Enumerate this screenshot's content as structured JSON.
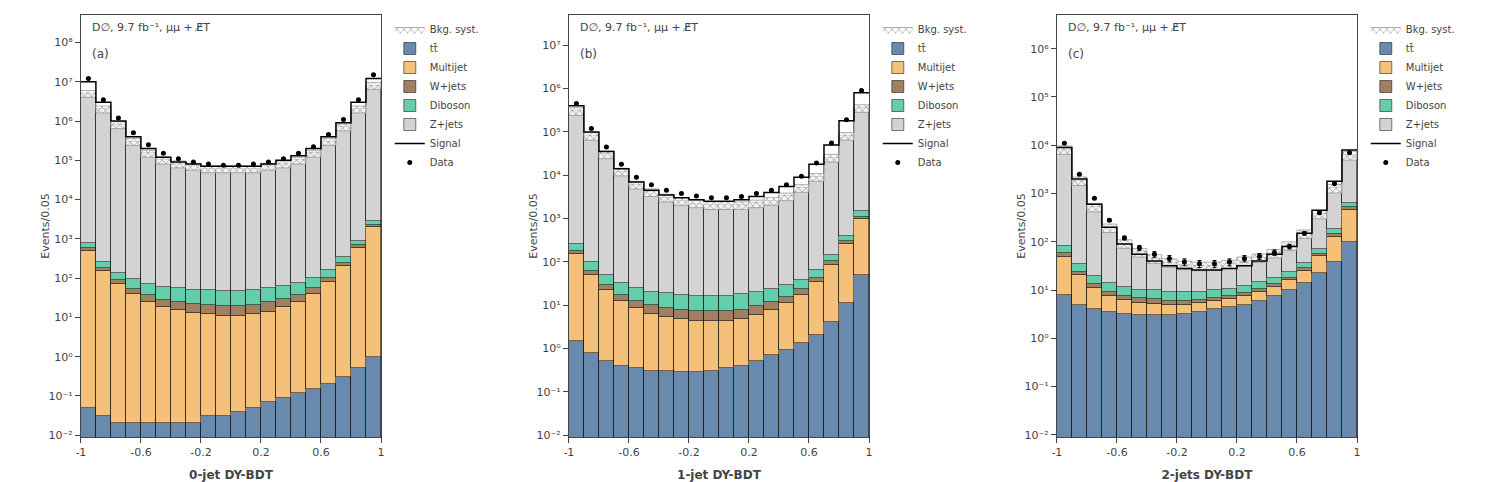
{
  "chart_data": [
    {
      "type": "bar",
      "stacked": true,
      "log": "y",
      "grid": false,
      "legend": "right",
      "x_label": "0-jet DY-BDT",
      "y_label": "Events/0.05",
      "annotations": [
        "D∅, 9.7 fb⁻¹, μμ + E̸T",
        "(a)"
      ],
      "bins": [
        -1.0,
        -0.9,
        -0.8,
        -0.7,
        -0.6,
        -0.5,
        -0.4,
        -0.3,
        -0.2,
        -0.1,
        0.0,
        0.1,
        0.2,
        0.3,
        0.4,
        0.5,
        0.6,
        0.7,
        0.8,
        0.9,
        1.0
      ],
      "xlim": [
        -1,
        1
      ],
      "xticks": [
        -1,
        -0.6,
        -0.2,
        0.2,
        0.6,
        1
      ],
      "ylim": [
        0.009,
        500000000.0
      ],
      "yticks": [
        {
          "value": 0.01,
          "label": "10⁻²"
        },
        {
          "value": 0.1,
          "label": "10⁻¹"
        },
        {
          "value": 1,
          "label": "10⁰"
        },
        {
          "value": 10,
          "label": "10¹"
        },
        {
          "value": 100,
          "label": "10²"
        },
        {
          "value": 1000,
          "label": "10³"
        },
        {
          "value": 10000,
          "label": "10⁴"
        },
        {
          "value": 100000,
          "label": "10⁵"
        },
        {
          "value": 1000000,
          "label": "10⁶"
        },
        {
          "value": 10000000,
          "label": "10⁷"
        },
        {
          "value": 100000000,
          "label": "10⁸"
        }
      ],
      "series": [
        {
          "name": "Data",
          "type": "scatter",
          "marker": "circle",
          "color": "#000000",
          "values": [
            12000000.0,
            3500000.0,
            1200000.0,
            500000.0,
            250000.0,
            150000.0,
            110000.0,
            90000.0,
            80000.0,
            75000.0,
            75000.0,
            80000.0,
            90000.0,
            110000.0,
            150000.0,
            220000.0,
            450000.0,
            1100000.0,
            3500000.0,
            15000000.0
          ],
          "errors": [
            3464.1016,
            1870.8287,
            1095.4451,
            707.1068,
            500,
            387.2983,
            331.6625,
            300,
            282.8427,
            273.8613,
            273.8613,
            282.8427,
            300,
            331.6625,
            387.2983,
            469.0416,
            670.8204,
            1048.8088,
            1870.8287,
            3872.9833
          ]
        },
        {
          "name": "Signal",
          "type": "step",
          "line_style": "solid",
          "color": "#000000",
          "values": [
            10000000.0,
            3000000.0,
            1000000.0,
            400000.0,
            200000.0,
            120000.0,
            90000.0,
            80000.0,
            70000.0,
            70000.0,
            70000.0,
            70000.0,
            80000.0,
            100000.0,
            130000.0,
            200000.0,
            400000.0,
            900000.0,
            3000000.0,
            12000000.0
          ]
        },
        {
          "name": "Z+jets",
          "type": "bar",
          "color": "#d3d3d3",
          "values": [
            5000000.0,
            2000000.0,
            800000.0,
            300000.0,
            150000.0,
            100000.0,
            80000.0,
            70000.0,
            60000.0,
            60000.0,
            60000.0,
            60000.0,
            70000.0,
            80000.0,
            100000.0,
            150000.0,
            300000.0,
            700000.0,
            2000000.0,
            8000000.0
          ]
        },
        {
          "name": "Diboson",
          "type": "bar",
          "color": "#66cdaa",
          "values": [
            200,
            80,
            50,
            40,
            35,
            30,
            30,
            28,
            28,
            28,
            28,
            30,
            32,
            35,
            38,
            45,
            60,
            100,
            200,
            600
          ]
        },
        {
          "name": "W+jets",
          "type": "bar",
          "color": "#a08060",
          "values": [
            80,
            30,
            18,
            14,
            12,
            10,
            10,
            9,
            9,
            8,
            8,
            9,
            10,
            11,
            13,
            16,
            22,
            40,
            90,
            300
          ]
        },
        {
          "name": "Multijet",
          "type": "bar",
          "color": "#f5c07a",
          "values": [
            500,
            150,
            70,
            40,
            25,
            18,
            15,
            13,
            12,
            11,
            11,
            12,
            14,
            18,
            25,
            40,
            80,
            200,
            600,
            2000
          ]
        },
        {
          "name": "tt̄",
          "type": "bar",
          "color": "#6a8aad",
          "values": [
            0.05,
            0.03,
            0.02,
            0.02,
            0.02,
            0.02,
            0.02,
            0.02,
            0.03,
            0.03,
            0.04,
            0.05,
            0.07,
            0.09,
            0.12,
            0.15,
            0.2,
            0.3,
            0.5,
            1.0
          ]
        },
        {
          "name": "Bkg. syst.",
          "type": "band",
          "color": "#808080",
          "low": [
            4000624.04,
            1600208.024,
            640110.416,
            240075.216,
            120057.616,
            80046.416,
            64044.016,
            56040.016,
            48039.224,
            48037.624,
            48037.632,
            48040.84,
            56044.856,
            64051.272,
            80060.896,
            120080.92,
            240129.76,
            560272.24,
            1600712.4,
            6402320.8
          ],
          "high": [
            6000936.06,
            2400312.036,
            960165.624,
            360112.824,
            180086.424,
            120069.624,
            96066.024,
            84060.024,
            72058.836,
            72056.436,
            72056.448,
            72061.26,
            84067.284,
            96076.908,
            120091.344,
            180121.38,
            360194.64,
            840408.36,
            2401068.6,
            9603481.2
          ]
        }
      ]
    },
    {
      "type": "bar",
      "stacked": true,
      "log": "y",
      "grid": false,
      "legend": "right",
      "x_label": "1-jet DY-BDT",
      "y_label": "Events/0.05",
      "annotations": [
        "D∅, 9.7 fb⁻¹, μμ + E̸T",
        "(b)"
      ],
      "bins": [
        -1.0,
        -0.9,
        -0.8,
        -0.7,
        -0.6,
        -0.5,
        -0.4,
        -0.3,
        -0.2,
        -0.1,
        0.0,
        0.1,
        0.2,
        0.3,
        0.4,
        0.5,
        0.6,
        0.7,
        0.8,
        0.9,
        1.0
      ],
      "xlim": [
        -1,
        1
      ],
      "xticks": [
        -1,
        -0.6,
        -0.2,
        0.2,
        0.6,
        1
      ],
      "ylim": [
        0.009,
        50000000.0
      ],
      "yticks": [
        {
          "value": 0.01,
          "label": "10⁻²"
        },
        {
          "value": 0.1,
          "label": "10⁻¹"
        },
        {
          "value": 1,
          "label": "10⁰"
        },
        {
          "value": 10,
          "label": "10¹"
        },
        {
          "value": 100,
          "label": "10²"
        },
        {
          "value": 1000,
          "label": "10³"
        },
        {
          "value": 10000,
          "label": "10⁴"
        },
        {
          "value": 100000,
          "label": "10⁵"
        },
        {
          "value": 1000000,
          "label": "10⁶"
        },
        {
          "value": 10000000,
          "label": "10⁷"
        }
      ],
      "series": [
        {
          "name": "Data",
          "type": "scatter",
          "marker": "circle",
          "color": "#000000",
          "values": [
            450000.0,
            120000.0,
            45000.0,
            18000.0,
            9000.0,
            6000.0,
            4500.0,
            3800.0,
            3300.0,
            3000.0,
            3000.0,
            3200.0,
            3800.0,
            4500.0,
            6000.0,
            9500.0,
            19000.0,
            55000.0,
            190000.0,
            900000.0
          ],
          "errors": [
            670.8204,
            346.4102,
            212.132,
            134.1641,
            94.8683,
            77.4597,
            67.082,
            61.6441,
            57.4456,
            54.7723,
            54.7723,
            56.5685,
            61.6441,
            67.082,
            77.4597,
            97.4679,
            137.8405,
            234.5208,
            435.8899,
            948.6833
          ]
        },
        {
          "name": "Signal",
          "type": "step",
          "line_style": "solid",
          "color": "#000000",
          "values": [
            400000.0,
            100000.0,
            35000.0,
            14000.0,
            7000.0,
            4500.0,
            3500.0,
            3000.0,
            2700.0,
            2500.0,
            2500.0,
            2700.0,
            3200.0,
            4000.0,
            5500.0,
            9000.0,
            18000.0,
            50000.0,
            180000.0,
            800000.0
          ]
        },
        {
          "name": "Z+jets",
          "type": "bar",
          "color": "#d3d3d3",
          "values": [
            300000.0,
            80000.0,
            30000.0,
            12000.0,
            6000.0,
            4000.0,
            3000.0,
            2500.0,
            2200.0,
            2000.0,
            2000.0,
            2000.0,
            2200.0,
            2500.0,
            3200.0,
            5000.0,
            9000.0,
            25000.0,
            80000.0,
            350000.0
          ]
        },
        {
          "name": "Diboson",
          "type": "bar",
          "color": "#66cdaa",
          "values": [
            80,
            35,
            20,
            15,
            12,
            10,
            10,
            9,
            9,
            9,
            9,
            10,
            11,
            12,
            13,
            15,
            22,
            40,
            90,
            350
          ]
        },
        {
          "name": "W+jets",
          "type": "bar",
          "color": "#a08060",
          "values": [
            30,
            12,
            7,
            5,
            4,
            3.5,
            3.5,
            3,
            3,
            3,
            3,
            3,
            3.5,
            4,
            4.5,
            6,
            9,
            18,
            45,
            160
          ]
        },
        {
          "name": "Multijet",
          "type": "bar",
          "color": "#f5c07a",
          "values": [
            150,
            50,
            22,
            12,
            8,
            6,
            5,
            4.5,
            4,
            4,
            4,
            4.5,
            5.5,
            7,
            10,
            16,
            32,
            80,
            250,
            900
          ]
        },
        {
          "name": "tt̄",
          "type": "bar",
          "color": "#6a8aad",
          "values": [
            1.5,
            0.8,
            0.5,
            0.4,
            0.35,
            0.3,
            0.3,
            0.28,
            0.28,
            0.3,
            0.35,
            0.4,
            0.5,
            0.7,
            0.9,
            1.3,
            2.0,
            4.0,
            11.0,
            50.0
          ]
        },
        {
          "name": "Bkg. syst.",
          "type": "band",
          "color": "#808080",
          "low": [
            240209.2,
            64078.24,
            24039.6,
            9625.92,
            4819.48,
            3215.84,
            2415.04,
            2013.424,
            1773.024,
            1613.04,
            1613.08,
            1614.32,
            1776.4,
            2018.96,
            2582.72,
            4030.64,
            7252,
            20113.6,
            64316.8,
            281168
          ],
          "high": [
            360313.8,
            96117.36,
            36059.4,
            14438.88,
            7229.22,
            4823.76,
            3622.56,
            3020.136,
            2659.536,
            2419.56,
            2419.62,
            2421.48,
            2664.6,
            3028.44,
            3874.08,
            6045.96,
            10878,
            30170.4,
            96475.2,
            421752
          ]
        }
      ]
    },
    {
      "type": "bar",
      "stacked": true,
      "log": "y",
      "grid": false,
      "legend": "right",
      "x_label": "2-jets DY-BDT",
      "y_label": "Events/0.05",
      "annotations": [
        "D∅, 9.7 fb⁻¹, μμ + E̸T",
        "(c)"
      ],
      "bins": [
        -1.0,
        -0.9,
        -0.8,
        -0.7,
        -0.6,
        -0.5,
        -0.4,
        -0.3,
        -0.2,
        -0.1,
        0.0,
        0.1,
        0.2,
        0.3,
        0.4,
        0.5,
        0.6,
        0.7,
        0.8,
        0.9,
        1.0
      ],
      "xlim": [
        -1,
        1
      ],
      "xticks": [
        -1,
        -0.6,
        -0.2,
        0.2,
        0.6,
        1
      ],
      "ylim": [
        0.009,
        5000000.0
      ],
      "yticks": [
        {
          "value": 0.01,
          "label": "10⁻²"
        },
        {
          "value": 0.1,
          "label": "10⁻¹"
        },
        {
          "value": 1,
          "label": "10⁰"
        },
        {
          "value": 10,
          "label": "10¹"
        },
        {
          "value": 100,
          "label": "10²"
        },
        {
          "value": 1000,
          "label": "10³"
        },
        {
          "value": 10000,
          "label": "10⁴"
        },
        {
          "value": 100000,
          "label": "10⁵"
        },
        {
          "value": 1000000,
          "label": "10⁶"
        }
      ],
      "series": [
        {
          "name": "Data",
          "type": "scatter",
          "marker": "circle",
          "color": "#000000",
          "values": [
            11000.0,
            2500.0,
            800.0,
            280.0,
            120.0,
            75.0,
            55.0,
            45.0,
            38.0,
            35.0,
            35.0,
            38.0,
            45.0,
            50.0,
            60.0,
            80.0,
            150.0,
            400.0,
            1600.0,
            7000.0
          ],
          "errors": [
            104.8809,
            50,
            28.2843,
            16.7332,
            10.9545,
            8.6603,
            7.4162,
            6.7082,
            6.1644,
            5.9161,
            5.9161,
            6.1644,
            6.7082,
            7.0711,
            7.746,
            8.9443,
            12.2474,
            20,
            40,
            83.666
          ]
        },
        {
          "name": "Signal",
          "type": "step",
          "line_style": "solid",
          "color": "#000000",
          "values": [
            9000.0,
            2000.0,
            600.0,
            200.0,
            90.0,
            55.0,
            40.0,
            32.0,
            28.0,
            26.0,
            26.0,
            28.0,
            32.0,
            40.0,
            55.0,
            80.0,
            150.0,
            450.0,
            1800.0,
            8000.0
          ]
        },
        {
          "name": "Z+jets",
          "type": "bar",
          "color": "#d3d3d3",
          "values": [
            8000.0,
            1800.0,
            500.0,
            180.0,
            80.0,
            50.0,
            35.0,
            28.0,
            24.0,
            22.0,
            22.0,
            24.0,
            28.0,
            32.0,
            40.0,
            60.0,
            110.0,
            300.0,
            1100.0,
            5500.0
          ]
        },
        {
          "name": "Diboson",
          "type": "bar",
          "color": "#66cdaa",
          "values": [
            25,
            10,
            6,
            5,
            4,
            3.5,
            3.5,
            3,
            3,
            3,
            3,
            3,
            3.5,
            4,
            4.5,
            5.5,
            8,
            15,
            35,
            120
          ]
        },
        {
          "name": "W+jets",
          "type": "bar",
          "color": "#a08060",
          "values": [
            10,
            4,
            2.5,
            1.8,
            1.5,
            1.2,
            1.2,
            1,
            1,
            1,
            1,
            1,
            1.2,
            1.4,
            1.6,
            2,
            3.5,
            7,
            18,
            65
          ]
        },
        {
          "name": "Multijet",
          "type": "bar",
          "color": "#f5c07a",
          "values": [
            40,
            15,
            7,
            4,
            3,
            2.5,
            2.2,
            2,
            1.8,
            1.8,
            1.8,
            2,
            2.5,
            3,
            4,
            6,
            11,
            28,
            90,
            350
          ]
        },
        {
          "name": "tt̄",
          "type": "bar",
          "color": "#6a8aad",
          "values": [
            8,
            5,
            4,
            3.5,
            3.2,
            3,
            3,
            3,
            3.2,
            3.5,
            4,
            4.5,
            5,
            6,
            7.5,
            10,
            14,
            22,
            38,
            100
          ]
        },
        {
          "name": "Bkg. syst.",
          "type": "band",
          "color": "#808080",
          "low": [
            6466.4,
            1467.2,
            415.6,
            155.44,
            73.36,
            48.16,
            35.92,
            29.6,
            26.4,
            25.04,
            25.44,
            27.6,
            32.16,
            37.12,
            46.08,
            66.8,
            117.2,
            297.6,
            1024.8,
            4908
          ],
          "high": [
            9699.6,
            2200.8,
            623.4,
            233.16,
            110.04,
            72.24,
            53.88,
            44.4,
            39.6,
            37.56,
            38.16,
            41.4,
            48.24,
            55.68,
            69.12,
            100.2,
            175.8,
            446.4,
            1537.2,
            7362
          ]
        }
      ]
    }
  ]
}
